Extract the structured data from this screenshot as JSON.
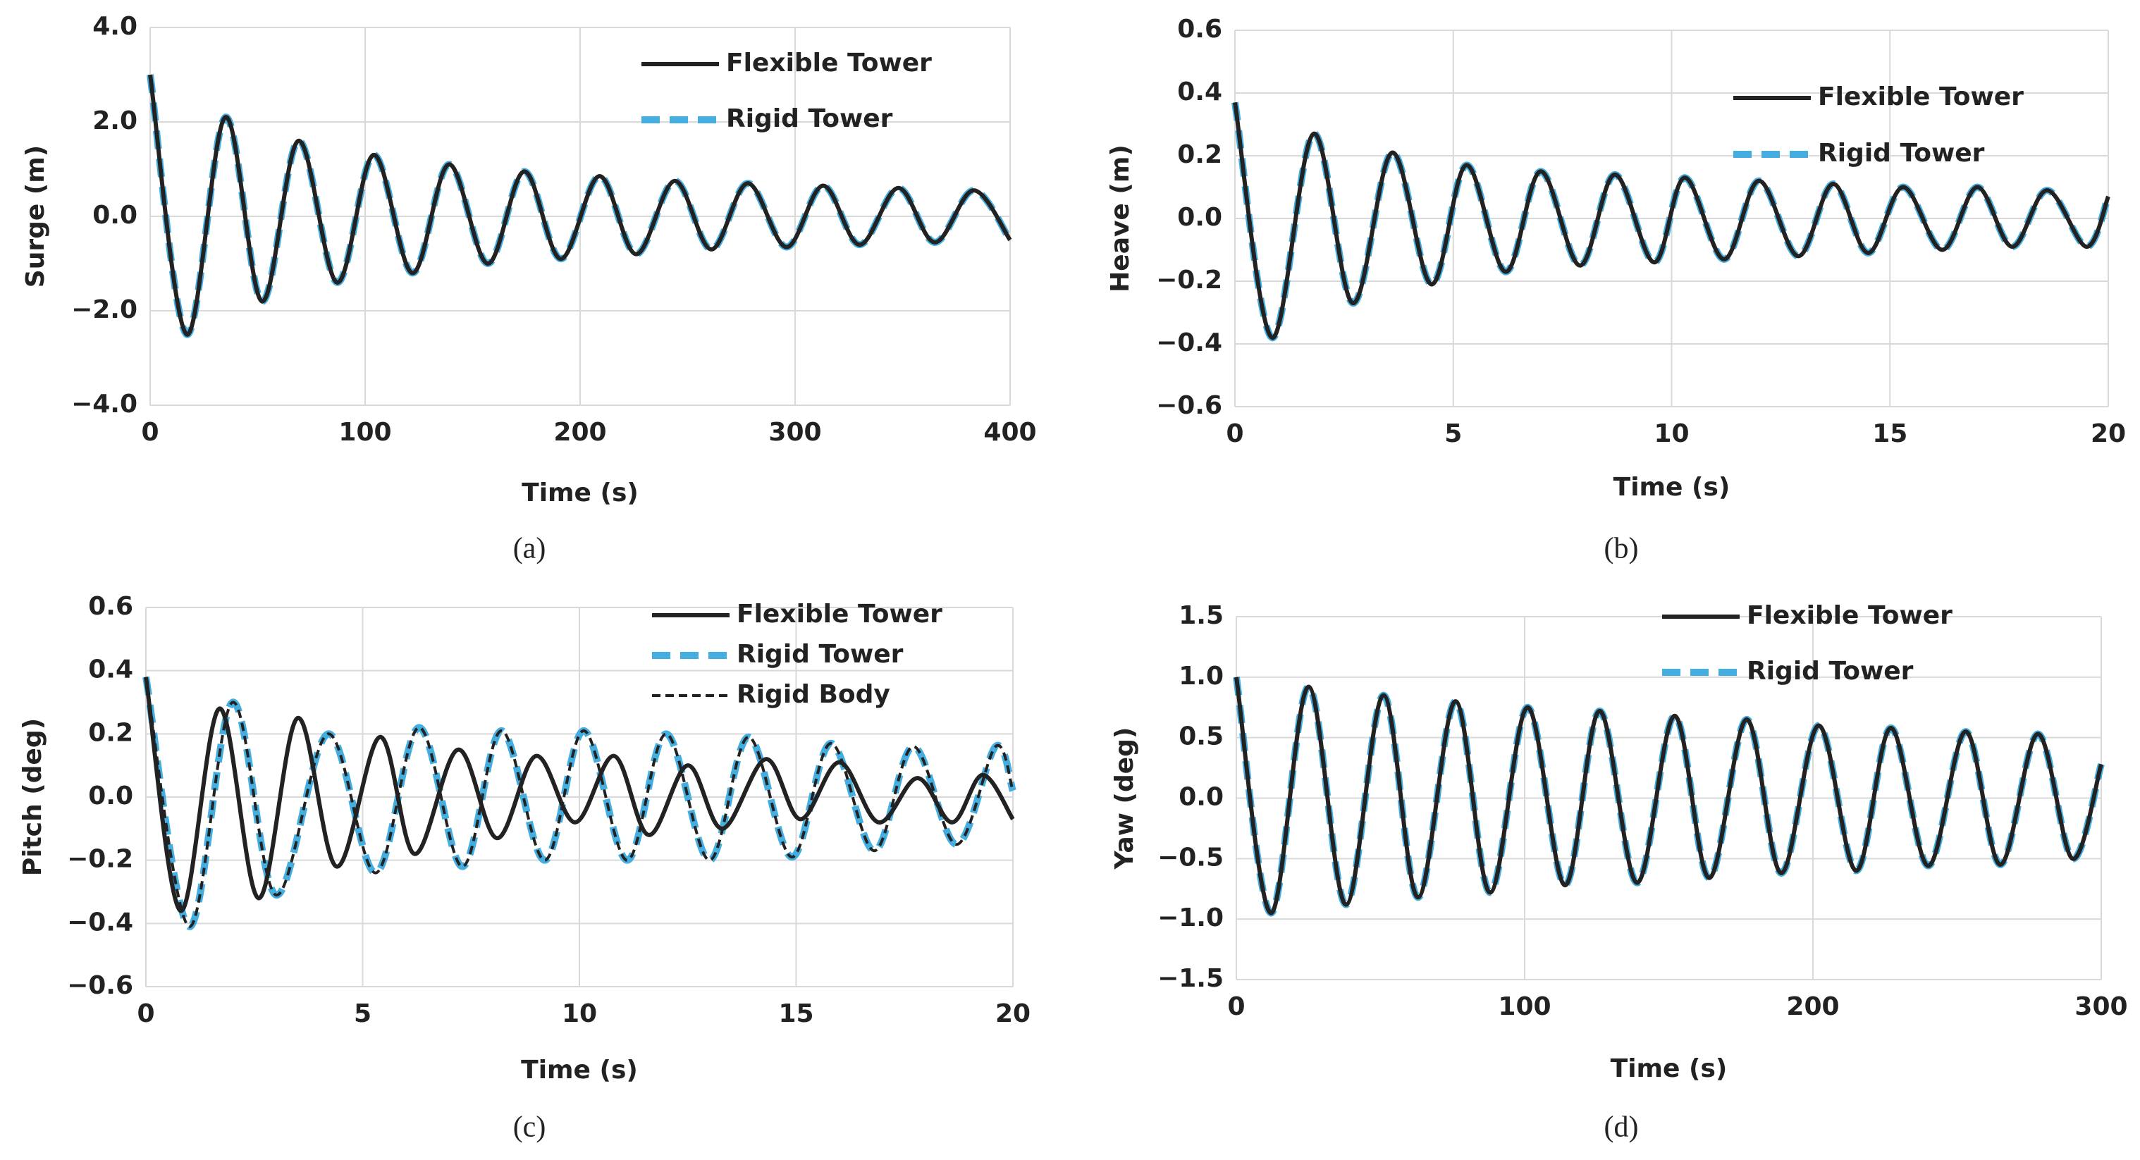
{
  "chart_data": [
    {
      "type": "line",
      "caption": "(a)",
      "x_label": "Time (s)",
      "y_label": "Surge (m)",
      "x": [
        0,
        17,
        35,
        52,
        69,
        87,
        104,
        122,
        139,
        157,
        174,
        191,
        209,
        226,
        244,
        261,
        278,
        296,
        313,
        330,
        348,
        365,
        383,
        400
      ],
      "series": [
        {
          "name": "Flexible Tower",
          "color": "#222222",
          "style": "solid",
          "values": [
            3.0,
            -2.5,
            2.1,
            -1.8,
            1.6,
            -1.4,
            1.3,
            -1.2,
            1.1,
            -1.0,
            0.95,
            -0.9,
            0.85,
            -0.8,
            0.75,
            -0.7,
            0.7,
            -0.65,
            0.65,
            -0.6,
            0.6,
            -0.55,
            0.55,
            -0.5
          ]
        },
        {
          "name": "Rigid Tower",
          "color": "#45aee0",
          "style": "thick-dashed",
          "values": [
            3.0,
            -2.5,
            2.1,
            -1.8,
            1.6,
            -1.4,
            1.3,
            -1.2,
            1.1,
            -1.0,
            0.95,
            -0.9,
            0.85,
            -0.8,
            0.75,
            -0.7,
            0.7,
            -0.65,
            0.65,
            -0.6,
            0.6,
            -0.55,
            0.55,
            -0.5
          ]
        }
      ],
      "xlim": [
        0,
        400
      ],
      "xticks": [
        0,
        100,
        200,
        300,
        400
      ],
      "ylim": [
        -4,
        4
      ],
      "yticks": [
        {
          "value": -4,
          "label": "−4.0"
        },
        {
          "value": -2,
          "label": "−2.0"
        },
        {
          "value": 0,
          "label": "0.0"
        },
        {
          "value": 2,
          "label": "2.0"
        },
        {
          "value": 4,
          "label": "4.0"
        }
      ],
      "grid": true,
      "legend": "upper right"
    },
    {
      "type": "line",
      "caption": "(b)",
      "x_label": "Time (s)",
      "y_label": "Heave (m)",
      "x": [
        0,
        0.85,
        1.8,
        2.7,
        3.6,
        4.5,
        5.3,
        6.2,
        7.0,
        7.9,
        8.7,
        9.6,
        10.3,
        11.2,
        12.0,
        12.9,
        13.7,
        14.5,
        15.3,
        16.2,
        17.0,
        17.8,
        18.6,
        19.5,
        20
      ],
      "series": [
        {
          "name": "Flexible Tower",
          "color": "#222222",
          "style": "solid",
          "values": [
            0.37,
            -0.38,
            0.27,
            -0.27,
            0.21,
            -0.21,
            0.17,
            -0.17,
            0.15,
            -0.15,
            0.14,
            -0.14,
            0.13,
            -0.13,
            0.12,
            -0.12,
            0.11,
            -0.11,
            0.1,
            -0.1,
            0.1,
            -0.09,
            0.09,
            -0.09,
            0.07
          ]
        },
        {
          "name": "Rigid Tower",
          "color": "#45aee0",
          "style": "thick-dashed",
          "values": [
            0.37,
            -0.38,
            0.27,
            -0.27,
            0.21,
            -0.21,
            0.17,
            -0.17,
            0.15,
            -0.15,
            0.14,
            -0.14,
            0.13,
            -0.13,
            0.12,
            -0.12,
            0.11,
            -0.11,
            0.1,
            -0.1,
            0.1,
            -0.09,
            0.09,
            -0.09,
            0.07
          ]
        }
      ],
      "xlim": [
        0,
        20
      ],
      "xticks": [
        0,
        5,
        10,
        15,
        20
      ],
      "ylim": [
        -0.6,
        0.6
      ],
      "yticks": [
        {
          "value": -0.6,
          "label": "−0.6"
        },
        {
          "value": -0.4,
          "label": "−0.4"
        },
        {
          "value": -0.2,
          "label": "−0.2"
        },
        {
          "value": 0,
          "label": "0.0"
        },
        0.2,
        0.4,
        0.6
      ],
      "grid": true,
      "legend": "right"
    },
    {
      "type": "line",
      "caption": "(c)",
      "x_label": "Time (s)",
      "y_label": "Pitch (deg)",
      "series": [
        {
          "name": "Flexible Tower",
          "color": "#222222",
          "style": "solid",
          "x": [
            0,
            0.8,
            1.7,
            2.6,
            3.5,
            4.4,
            5.4,
            6.2,
            7.2,
            8.1,
            9.0,
            9.9,
            10.8,
            11.6,
            12.5,
            13.3,
            14.3,
            15.1,
            16.0,
            16.9,
            17.8,
            18.6,
            19.3,
            20
          ],
          "values": [
            0.38,
            -0.36,
            0.28,
            -0.32,
            0.25,
            -0.22,
            0.19,
            -0.18,
            0.15,
            -0.13,
            0.13,
            -0.08,
            0.13,
            -0.12,
            0.1,
            -0.1,
            0.12,
            -0.07,
            0.11,
            -0.08,
            0.06,
            -0.08,
            0.07,
            -0.07
          ]
        },
        {
          "name": "Rigid Tower",
          "color": "#45aee0",
          "style": "thick-dashed",
          "x": [
            0,
            1.0,
            2.0,
            3.0,
            4.2,
            5.3,
            6.3,
            7.3,
            8.2,
            9.2,
            10.1,
            11.1,
            12.0,
            13.0,
            13.9,
            14.9,
            15.8,
            16.8,
            17.7,
            18.7,
            19.6,
            20
          ],
          "values": [
            0.38,
            -0.41,
            0.3,
            -0.31,
            0.2,
            -0.24,
            0.22,
            -0.22,
            0.21,
            -0.2,
            0.21,
            -0.2,
            0.2,
            -0.2,
            0.19,
            -0.19,
            0.17,
            -0.17,
            0.16,
            -0.15,
            0.16,
            0.02
          ]
        },
        {
          "name": "Rigid Body",
          "color": "#222222",
          "style": "dashed",
          "x": [
            0,
            1.0,
            2.0,
            3.0,
            4.2,
            5.3,
            6.3,
            7.3,
            8.2,
            9.2,
            10.1,
            11.1,
            12.0,
            13.0,
            13.9,
            14.9,
            15.8,
            16.8,
            17.7,
            18.7,
            19.6,
            20
          ],
          "values": [
            0.38,
            -0.41,
            0.3,
            -0.31,
            0.2,
            -0.24,
            0.22,
            -0.22,
            0.21,
            -0.2,
            0.21,
            -0.2,
            0.2,
            -0.2,
            0.19,
            -0.19,
            0.17,
            -0.17,
            0.16,
            -0.15,
            0.16,
            0.02
          ]
        }
      ],
      "xlim": [
        0,
        20
      ],
      "xticks": [
        0,
        5,
        10,
        15,
        20
      ],
      "ylim": [
        -0.6,
        0.6
      ],
      "yticks": [
        {
          "value": -0.6,
          "label": "−0.6"
        },
        {
          "value": -0.4,
          "label": "−0.4"
        },
        {
          "value": -0.2,
          "label": "−0.2"
        },
        {
          "value": 0,
          "label": "0.0"
        },
        0.2,
        0.4,
        0.6
      ],
      "grid": true,
      "legend": "upper right"
    },
    {
      "type": "line",
      "caption": "(d)",
      "x_label": "Time (s)",
      "y_label": "Yaw (deg)",
      "x": [
        0,
        12,
        25,
        38,
        51,
        63,
        76,
        88,
        101,
        114,
        126,
        139,
        152,
        164,
        177,
        189,
        202,
        215,
        227,
        240,
        253,
        265,
        278,
        290,
        300
      ],
      "series": [
        {
          "name": "Flexible Tower",
          "color": "#222222",
          "style": "solid",
          "values": [
            1.0,
            -0.95,
            0.92,
            -0.88,
            0.85,
            -0.82,
            0.8,
            -0.78,
            0.75,
            -0.72,
            0.72,
            -0.7,
            0.68,
            -0.66,
            0.65,
            -0.62,
            0.6,
            -0.6,
            0.58,
            -0.56,
            0.55,
            -0.55,
            0.53,
            -0.5,
            0.28
          ]
        },
        {
          "name": "Rigid Tower",
          "color": "#45aee0",
          "style": "thick-dashed",
          "values": [
            1.0,
            -0.95,
            0.92,
            -0.88,
            0.85,
            -0.82,
            0.8,
            -0.78,
            0.75,
            -0.72,
            0.72,
            -0.7,
            0.68,
            -0.66,
            0.65,
            -0.62,
            0.6,
            -0.6,
            0.58,
            -0.56,
            0.55,
            -0.55,
            0.53,
            -0.5,
            0.28
          ]
        }
      ],
      "xlim": [
        0,
        300
      ],
      "xticks": [
        0,
        100,
        200,
        300
      ],
      "ylim": [
        -1.5,
        1.5
      ],
      "yticks": [
        {
          "value": -1.5,
          "label": "−1.5"
        },
        {
          "value": -1,
          "label": "−1.0"
        },
        {
          "value": -0.5,
          "label": "−0.5"
        },
        {
          "value": 0,
          "label": "0.0"
        },
        0.5,
        {
          "value": 1,
          "label": "1.0"
        },
        1.5
      ],
      "grid": true,
      "legend": "upper center"
    }
  ]
}
